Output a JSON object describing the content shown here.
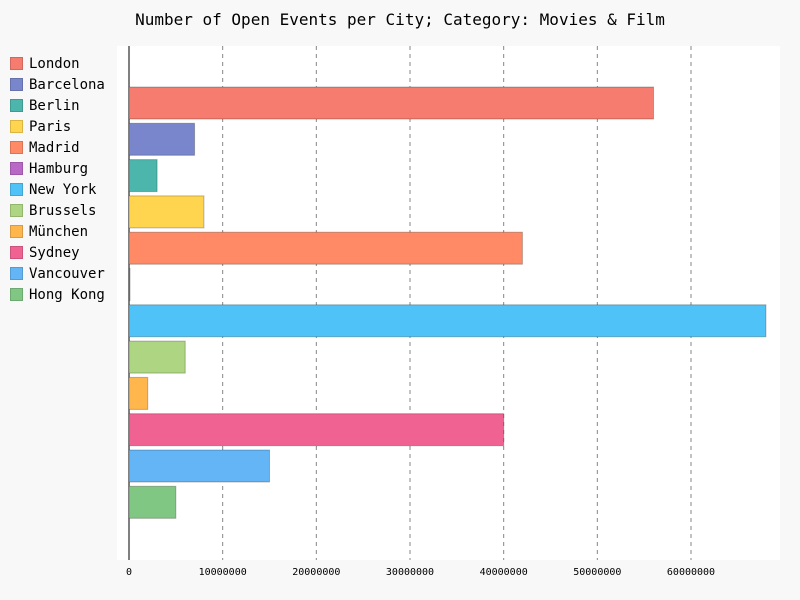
{
  "chart_data": {
    "type": "bar",
    "orientation": "horizontal",
    "title": "Number of Open Events per City; Category: Movies & Film",
    "xlabel": "",
    "ylabel": "",
    "xlim": [
      0,
      68000000
    ],
    "x_ticks": [
      "0",
      "10000000",
      "20000000",
      "30000000",
      "40000000",
      "50000000",
      "60000000"
    ],
    "x_tick_values": [
      0,
      10000000,
      20000000,
      30000000,
      40000000,
      50000000,
      60000000
    ],
    "grid": true,
    "legend_position": "left",
    "series": [
      {
        "name": "London",
        "value": 56000000,
        "color": "#f57c6e"
      },
      {
        "name": "Barcelona",
        "value": 7000000,
        "color": "#7986cb"
      },
      {
        "name": "Berlin",
        "value": 3000000,
        "color": "#4db6ac"
      },
      {
        "name": "Paris",
        "value": 8000000,
        "color": "#ffd54f"
      },
      {
        "name": "Madrid",
        "value": 42000000,
        "color": "#ff8a65"
      },
      {
        "name": "Hamburg",
        "value": 0,
        "color": "#ba68c8"
      },
      {
        "name": "New York",
        "value": 68000000,
        "color": "#4fc3f7"
      },
      {
        "name": "Brussels",
        "value": 6000000,
        "color": "#aed581"
      },
      {
        "name": "München",
        "value": 2000000,
        "color": "#ffb74d"
      },
      {
        "name": "Sydney",
        "value": 40000000,
        "color": "#f06292"
      },
      {
        "name": "Vancouver",
        "value": 15000000,
        "color": "#64b5f6"
      },
      {
        "name": "Hong Kong",
        "value": 5000000,
        "color": "#81c784"
      }
    ]
  }
}
